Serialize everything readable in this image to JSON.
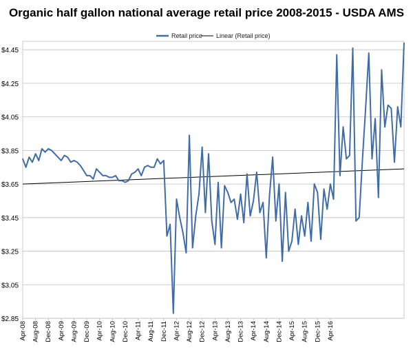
{
  "chart_data": {
    "type": "line",
    "title": "Organic half gallon national average retail price 2008-2015 - USDA AMS",
    "xlabel": "",
    "ylabel": "",
    "ylim": [
      2.85,
      4.5
    ],
    "yticks": [
      "$2.85",
      "$3.05",
      "$3.25",
      "$3.45",
      "$3.65",
      "$3.85",
      "$4.05",
      "$4.25",
      "$4.45"
    ],
    "ytick_values": [
      2.85,
      3.05,
      3.25,
      3.45,
      3.65,
      3.85,
      4.05,
      4.25,
      4.45
    ],
    "xticks": [
      "Apr-08",
      "Aug-08",
      "Dec-08",
      "Apr-09",
      "Aug-09",
      "Dec-09",
      "Apr-10",
      "Aug-10",
      "Dec-10",
      "Apr-11",
      "Aug-11",
      "Dec-11",
      "Apr-12",
      "Aug-12",
      "Dec-12",
      "Apr-13",
      "Aug-13",
      "Dec-13",
      "Apr-14",
      "Aug-14",
      "Dec-14",
      "Apr-15",
      "Aug-15",
      "Dec-15",
      "Apr-16"
    ],
    "grid": true,
    "legend": "top-center",
    "colors": {
      "series": "#3F6BA8",
      "trend": "#000000"
    },
    "series": [
      {
        "name": "Retail price",
        "values": [
          3.8,
          3.75,
          3.81,
          3.78,
          3.83,
          3.79,
          3.86,
          3.84,
          3.86,
          3.85,
          3.83,
          3.81,
          3.79,
          3.82,
          3.81,
          3.78,
          3.79,
          3.78,
          3.76,
          3.73,
          3.7,
          3.7,
          3.68,
          3.74,
          3.72,
          3.7,
          3.7,
          3.69,
          3.69,
          3.7,
          3.67,
          3.67,
          3.66,
          3.67,
          3.71,
          3.72,
          3.74,
          3.7,
          3.75,
          3.76,
          3.75,
          3.75,
          3.8,
          3.77,
          3.79,
          3.34,
          3.41,
          2.88,
          3.56,
          3.45,
          3.36,
          3.24,
          3.94,
          3.27,
          3.46,
          3.59,
          3.87,
          3.48,
          3.83,
          3.43,
          3.29,
          3.66,
          3.27,
          3.64,
          3.6,
          3.54,
          3.56,
          3.44,
          3.59,
          3.42,
          3.71,
          3.46,
          3.55,
          3.72,
          3.48,
          3.54,
          3.21,
          3.58,
          3.81,
          3.43,
          3.65,
          3.19,
          3.6,
          3.25,
          3.31,
          3.5,
          3.29,
          3.46,
          3.34,
          3.54,
          3.31,
          3.65,
          3.6,
          3.32,
          3.62,
          3.5,
          3.65,
          3.56,
          4.42,
          3.7,
          3.99,
          3.8,
          3.82,
          4.46,
          3.43,
          3.45,
          3.79,
          4.1,
          4.43,
          3.8,
          4.04,
          3.57,
          4.33,
          3.99,
          4.12,
          4.1,
          3.78,
          4.11,
          3.99,
          4.49
        ]
      },
      {
        "name": "Linear (Retail price)",
        "trend_start": 3.65,
        "trend_end": 3.74
      }
    ]
  }
}
